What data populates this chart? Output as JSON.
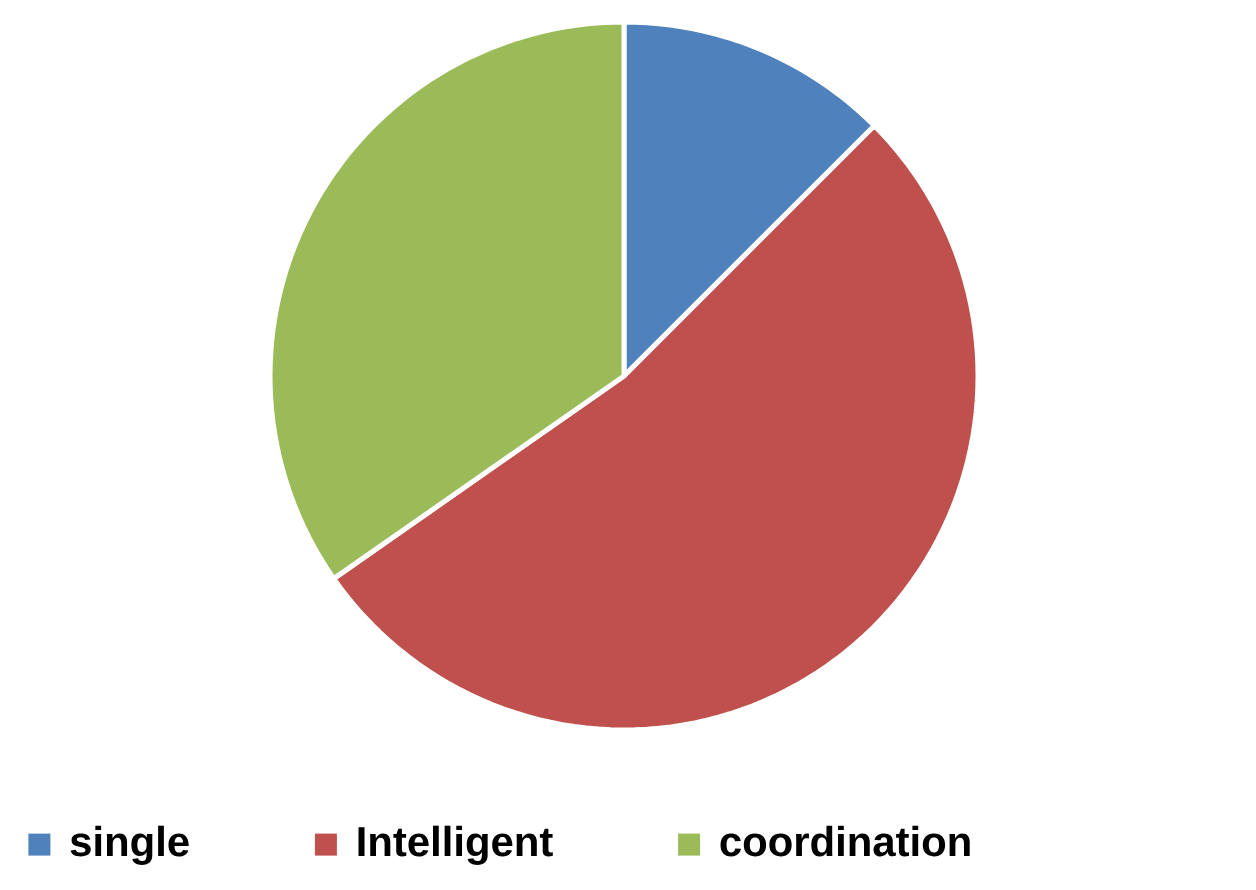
{
  "chart_data": {
    "type": "pie",
    "categories": [
      "single",
      "Intelligent",
      "coordination"
    ],
    "values": [
      12.5,
      52.8,
      34.7
    ],
    "colors": [
      "#4f81bd",
      "#c0504d",
      "#9bbb59"
    ],
    "legend": "bottom"
  }
}
